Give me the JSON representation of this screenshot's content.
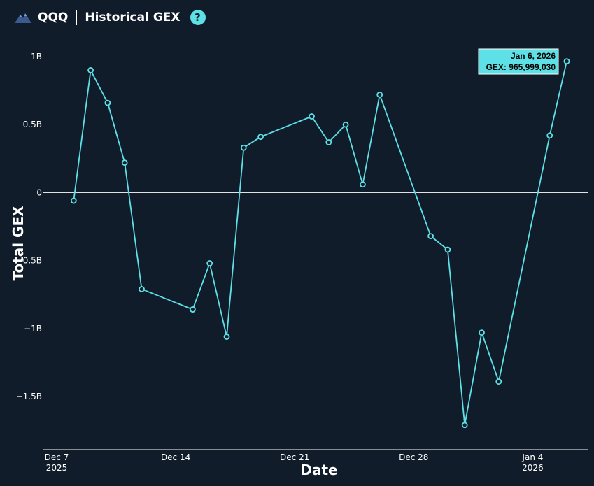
{
  "header": {
    "ticker": "QQQ",
    "title": "Historical GEX",
    "help_symbol": "?",
    "logo_icon": "mountain-logo-icon"
  },
  "colors": {
    "background": "#101c2a",
    "line": "#5de0e6",
    "text": "#ffffff",
    "tooltip_bg": "#5de0e6"
  },
  "tooltip": {
    "date": "Jan 6, 2026",
    "value": "GEX: 965,999,030"
  },
  "chart_data": {
    "type": "line",
    "title": "",
    "xlabel": "Date",
    "ylabel": "Total GEX",
    "ylim": [
      -1.9,
      1.1
    ],
    "yticks": [
      {
        "value": 1.0,
        "label": "1B"
      },
      {
        "value": 0.5,
        "label": "0.5B"
      },
      {
        "value": 0,
        "label": "0"
      },
      {
        "value": -0.5,
        "label": "−0.5B"
      },
      {
        "value": -1.0,
        "label": "−1B"
      },
      {
        "value": -1.5,
        "label": "−1.5B"
      }
    ],
    "xticks": [
      {
        "date": "2025-12-07",
        "label": "Dec 7",
        "sublabel": "2025"
      },
      {
        "date": "2025-12-14",
        "label": "Dec 14",
        "sublabel": ""
      },
      {
        "date": "2025-12-21",
        "label": "Dec 21",
        "sublabel": ""
      },
      {
        "date": "2025-12-28",
        "label": "Dec 28",
        "sublabel": ""
      },
      {
        "date": "2026-01-04",
        "label": "Jan 4",
        "sublabel": "2026"
      }
    ],
    "zero_line": true,
    "series": [
      {
        "x": [
          "2025-12-08",
          "2025-12-09",
          "2025-12-10",
          "2025-12-11",
          "2025-12-12",
          "2025-12-15",
          "2025-12-16",
          "2025-12-17",
          "2025-12-18",
          "2025-12-19",
          "2025-12-22",
          "2025-12-23",
          "2025-12-24",
          "2025-12-25",
          "2025-12-26",
          "2025-12-29",
          "2025-12-30",
          "2025-12-31",
          "2026-01-01",
          "2026-01-02",
          "2026-01-05",
          "2026-01-06"
        ],
        "values": [
          -0.06,
          0.9,
          0.66,
          0.22,
          -0.71,
          -0.86,
          -0.52,
          -1.06,
          0.33,
          0.41,
          0.56,
          0.37,
          0.5,
          0.06,
          0.72,
          -0.32,
          -0.42,
          -1.71,
          -1.03,
          -1.39,
          0.42,
          0.966
        ]
      }
    ]
  }
}
